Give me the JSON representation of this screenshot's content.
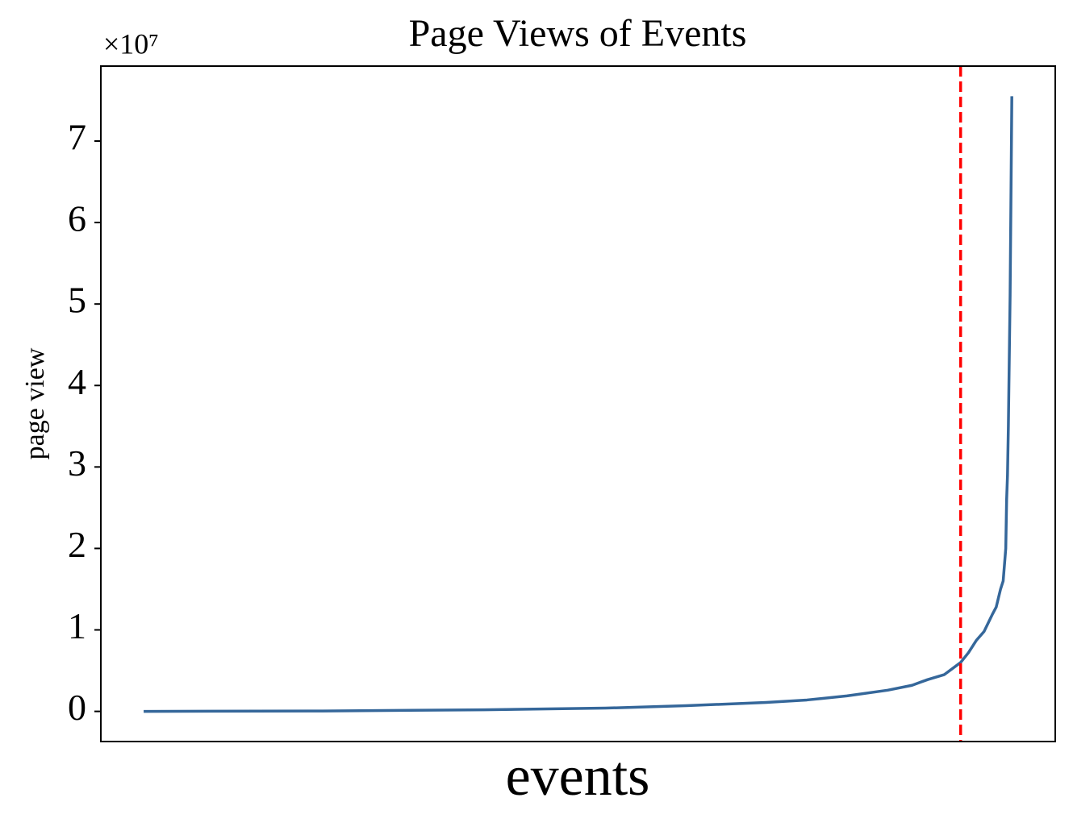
{
  "chart_data": {
    "type": "line",
    "title": "Page Views of Events",
    "x_label": "events",
    "y_label": "page view",
    "y_offset_label": "×10⁷",
    "x": [
      0,
      20.6,
      39.2,
      53.2,
      62.5,
      71.7,
      76.4,
      81.0,
      85.7,
      88.5,
      90.3,
      92.2,
      94.1,
      95.0,
      95.9,
      96.8,
      97.8,
      98.2,
      98.7,
      99.0,
      99.3,
      99.4,
      99.5,
      99.6,
      99.8,
      100
    ],
    "series": [
      {
        "color": "#35679a",
        "values": [
          0,
          0.005,
          0.02,
          0.04,
          0.07,
          0.11,
          0.14,
          0.19,
          0.26,
          0.32,
          0.39,
          0.45,
          0.6,
          0.72,
          0.87,
          0.98,
          1.2,
          1.28,
          1.5,
          1.6,
          2.0,
          2.6,
          2.9,
          3.5,
          5.1,
          7.55
        ]
      }
    ],
    "vline": {
      "x": 94.1,
      "color": "#ff0000",
      "style": "dashed"
    },
    "xlim": [
      -4.93,
      105.0
    ],
    "ylim": [
      -0.37,
      7.92
    ],
    "yticks": [
      0,
      1,
      2,
      3,
      4,
      5,
      6,
      7
    ],
    "grid": false
  }
}
